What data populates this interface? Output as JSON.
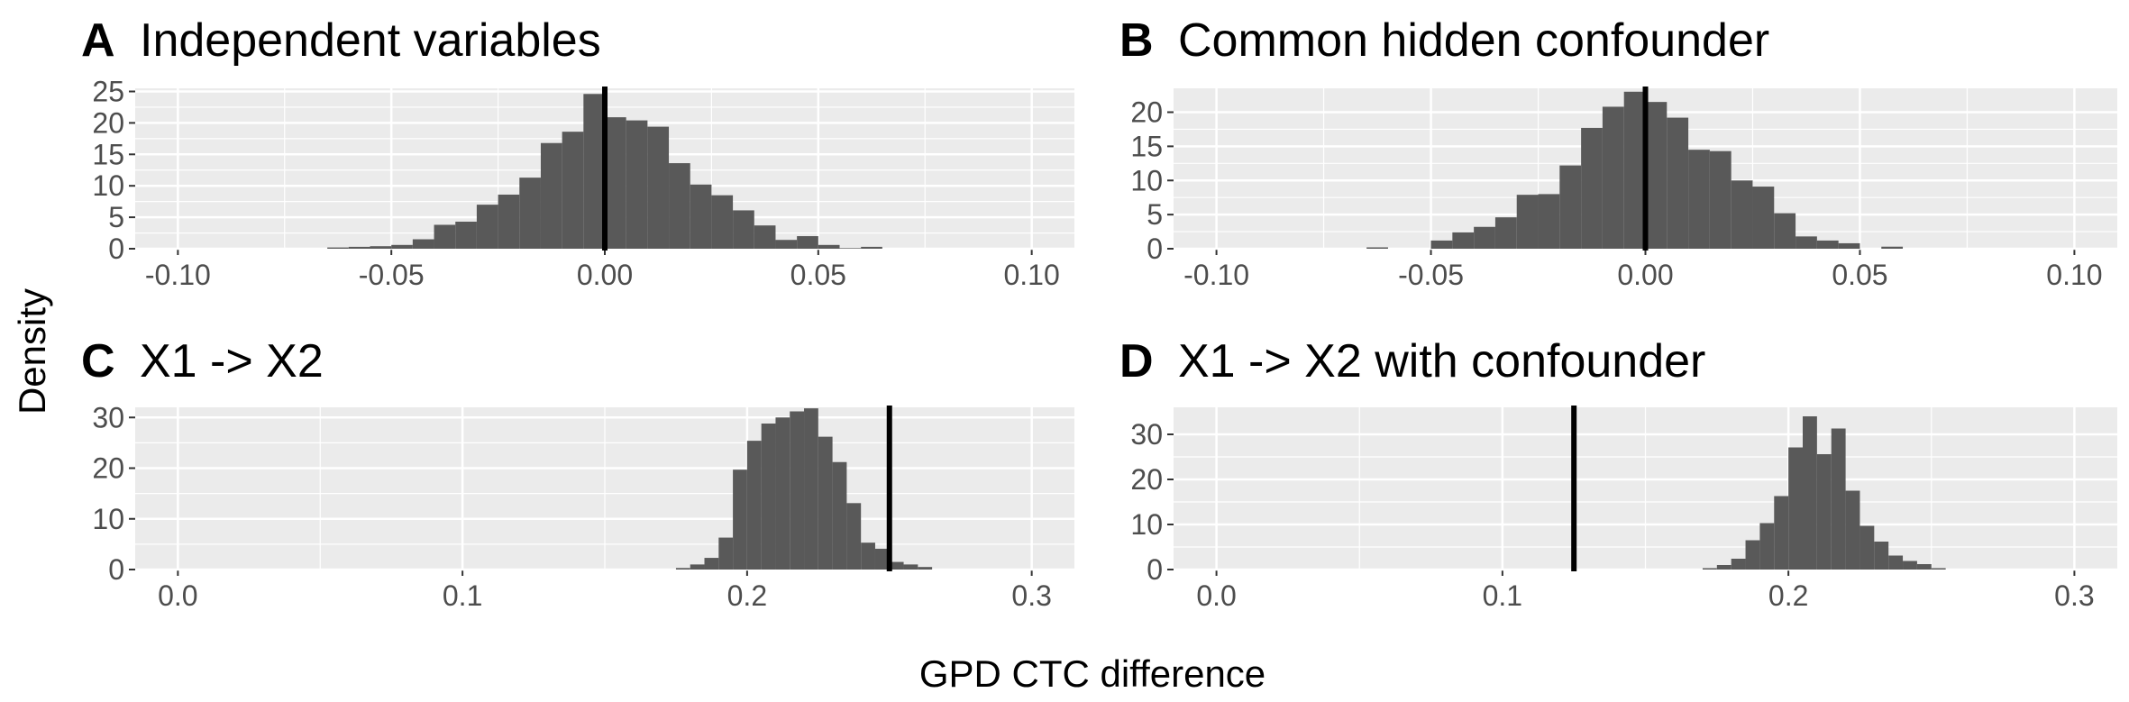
{
  "figure": {
    "ylabel": "Density",
    "xlabel": "GPD CTC difference"
  },
  "chart_data": [
    {
      "type": "bar",
      "panel": "A",
      "title": "Independent variables",
      "xlim": [
        -0.11,
        0.11
      ],
      "ylim": [
        0,
        25.5
      ],
      "xticks": [
        -0.1,
        -0.05,
        0.0,
        0.05,
        0.1
      ],
      "xtick_labels": [
        "-0.10",
        "-0.05",
        "0.00",
        "0.05",
        "0.10"
      ],
      "yticks": [
        0,
        5,
        10,
        15,
        20,
        25
      ],
      "ytick_labels": [
        "0",
        "5",
        "10",
        "15",
        "20",
        "25"
      ],
      "bin_width": 0.005,
      "bins": [
        [
          -0.065,
          0.2
        ],
        [
          -0.06,
          0.3
        ],
        [
          -0.055,
          0.4
        ],
        [
          -0.05,
          0.6
        ],
        [
          -0.045,
          1.5
        ],
        [
          -0.04,
          3.8
        ],
        [
          -0.035,
          4.3
        ],
        [
          -0.03,
          7.0
        ],
        [
          -0.025,
          8.6
        ],
        [
          -0.02,
          11.3
        ],
        [
          -0.015,
          16.8
        ],
        [
          -0.01,
          18.6
        ],
        [
          -0.005,
          24.6
        ],
        [
          0.0,
          20.9
        ],
        [
          0.005,
          20.4
        ],
        [
          0.01,
          19.4
        ],
        [
          0.015,
          13.6
        ],
        [
          0.02,
          10.2
        ],
        [
          0.025,
          8.5
        ],
        [
          0.03,
          6.1
        ],
        [
          0.035,
          3.7
        ],
        [
          0.04,
          1.4
        ],
        [
          0.045,
          2.0
        ],
        [
          0.05,
          0.6
        ],
        [
          0.055,
          0.1
        ],
        [
          0.06,
          0.3
        ]
      ],
      "vline": 0.0,
      "grid": true
    },
    {
      "type": "bar",
      "panel": "B",
      "title": "Common hidden confounder",
      "xlim": [
        -0.11,
        0.11
      ],
      "ylim": [
        0,
        23.5
      ],
      "xticks": [
        -0.1,
        -0.05,
        0.0,
        0.05,
        0.1
      ],
      "xtick_labels": [
        "-0.10",
        "-0.05",
        "0.00",
        "0.05",
        "0.10"
      ],
      "yticks": [
        0,
        5,
        10,
        15,
        20
      ],
      "ytick_labels": [
        "0",
        "5",
        "10",
        "15",
        "20"
      ],
      "bin_width": 0.005,
      "bins": [
        [
          -0.065,
          0.2
        ],
        [
          -0.05,
          1.2
        ],
        [
          -0.045,
          2.4
        ],
        [
          -0.04,
          3.2
        ],
        [
          -0.035,
          4.6
        ],
        [
          -0.03,
          7.9
        ],
        [
          -0.025,
          8.0
        ],
        [
          -0.02,
          12.2
        ],
        [
          -0.015,
          17.7
        ],
        [
          -0.01,
          20.8
        ],
        [
          -0.005,
          23.0
        ],
        [
          0.0,
          21.5
        ],
        [
          0.005,
          19.2
        ],
        [
          0.01,
          14.5
        ],
        [
          0.015,
          14.3
        ],
        [
          0.02,
          10.0
        ],
        [
          0.025,
          9.1
        ],
        [
          0.03,
          5.2
        ],
        [
          0.035,
          1.8
        ],
        [
          0.04,
          1.2
        ],
        [
          0.045,
          0.8
        ],
        [
          0.055,
          0.3
        ]
      ],
      "vline": 0.0,
      "grid": true
    },
    {
      "type": "bar",
      "panel": "C",
      "title": "X1 -> X2",
      "xlim": [
        -0.015,
        0.315
      ],
      "ylim": [
        0,
        32
      ],
      "xticks": [
        0.0,
        0.1,
        0.2,
        0.3
      ],
      "xtick_labels": [
        "0.0",
        "0.1",
        "0.2",
        "0.3"
      ],
      "yticks": [
        0,
        10,
        20,
        30
      ],
      "ytick_labels": [
        "0",
        "10",
        "20",
        "30"
      ],
      "bin_width": 0.005,
      "bins": [
        [
          0.175,
          0.3
        ],
        [
          0.18,
          1.0
        ],
        [
          0.185,
          2.3
        ],
        [
          0.19,
          6.3
        ],
        [
          0.195,
          19.7
        ],
        [
          0.2,
          25.4
        ],
        [
          0.205,
          28.8
        ],
        [
          0.21,
          30.0
        ],
        [
          0.215,
          31.2
        ],
        [
          0.22,
          31.8
        ],
        [
          0.225,
          26.2
        ],
        [
          0.23,
          21.2
        ],
        [
          0.235,
          13.1
        ],
        [
          0.24,
          5.3
        ],
        [
          0.245,
          4.1
        ],
        [
          0.25,
          1.5
        ],
        [
          0.255,
          1.0
        ],
        [
          0.26,
          0.5
        ]
      ],
      "vline": 0.25,
      "grid": true
    },
    {
      "type": "bar",
      "panel": "D",
      "title": "X1 -> X2 with confounder",
      "xlim": [
        -0.015,
        0.315
      ],
      "ylim": [
        0,
        36
      ],
      "xticks": [
        0.0,
        0.1,
        0.2,
        0.3
      ],
      "xtick_labels": [
        "0.0",
        "0.1",
        "0.2",
        "0.3"
      ],
      "yticks": [
        0,
        10,
        20,
        30
      ],
      "ytick_labels": [
        "0",
        "10",
        "20",
        "30"
      ],
      "bin_width": 0.005,
      "bins": [
        [
          0.17,
          0.3
        ],
        [
          0.175,
          1.0
        ],
        [
          0.18,
          2.4
        ],
        [
          0.185,
          6.5
        ],
        [
          0.19,
          10.3
        ],
        [
          0.195,
          16.3
        ],
        [
          0.2,
          27.1
        ],
        [
          0.205,
          34.0
        ],
        [
          0.21,
          25.6
        ],
        [
          0.215,
          31.3
        ],
        [
          0.22,
          17.5
        ],
        [
          0.225,
          9.7
        ],
        [
          0.23,
          6.2
        ],
        [
          0.235,
          3.1
        ],
        [
          0.24,
          1.9
        ],
        [
          0.245,
          1.2
        ],
        [
          0.25,
          0.3
        ]
      ],
      "vline": 0.125,
      "grid": true
    }
  ]
}
